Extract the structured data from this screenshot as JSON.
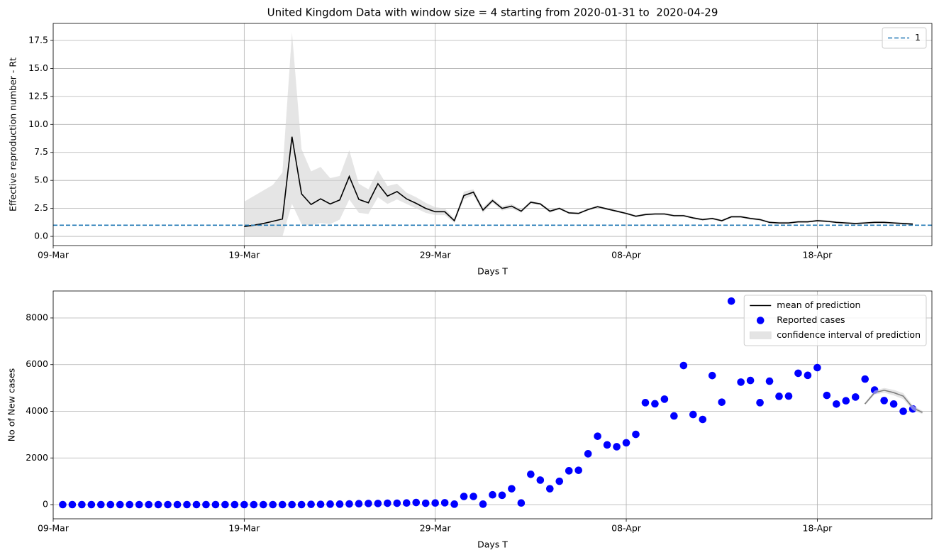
{
  "chart_data": [
    {
      "type": "line",
      "title": "United Kingdom Data with window size = 4 starting from 2020-01-31 to  2020-04-29",
      "xlabel": "Days T",
      "ylabel": "Effective reproduction number - Rt",
      "xlim": [
        0,
        92
      ],
      "xticks": [
        {
          "value": 0,
          "label": "09-Mar"
        },
        {
          "value": 20,
          "label": "19-Mar"
        },
        {
          "value": 40,
          "label": "29-Mar"
        },
        {
          "value": 60,
          "label": "08-Apr"
        },
        {
          "value": 80,
          "label": "18-Apr"
        }
      ],
      "ylim": [
        -0.82,
        19.02
      ],
      "yticks": [
        {
          "value": 0,
          "label": "0.0"
        },
        2.5,
        {
          "value": 5,
          "label": "5.0"
        },
        7.5,
        {
          "value": 10,
          "label": "10.0"
        },
        12.5,
        {
          "value": 15,
          "label": "15.0"
        },
        17.5
      ],
      "grid": true,
      "legend": "upper right",
      "series": [
        {
          "type": "band",
          "color": "#d3d3d3",
          "x": [
            20,
            21,
            22,
            23,
            24,
            25,
            26,
            27,
            28,
            29,
            30,
            31,
            32,
            33,
            34,
            35,
            36,
            37,
            38,
            39,
            40,
            41,
            42,
            43,
            44,
            45,
            46,
            47,
            48,
            49,
            50,
            51,
            52,
            53,
            54,
            55,
            56,
            57,
            58,
            59,
            60,
            61,
            62,
            63,
            64,
            65,
            66,
            67,
            68,
            69,
            70,
            71,
            72,
            73,
            74,
            75,
            76,
            77,
            78,
            79,
            80,
            81,
            82,
            83,
            84,
            85,
            86,
            87,
            88,
            89,
            90
          ],
          "upper": [
            3.1,
            3.6,
            4.1,
            4.6,
            5.7,
            18.2,
            7.8,
            5.8,
            6.2,
            5.2,
            5.4,
            7.7,
            4.7,
            4.2,
            5.9,
            4.5,
            4.7,
            3.9,
            3.5,
            3.0,
            2.6,
            2.5,
            1.6,
            4.0,
            4.2,
            2.6,
            3.4,
            2.7,
            2.9,
            2.4,
            3.2,
            3.0,
            2.4,
            2.6,
            2.2,
            2.15,
            2.5,
            2.75,
            2.55,
            2.35,
            2.15,
            1.9,
            2.05,
            2.1,
            2.1,
            1.95,
            1.95,
            1.75,
            1.6,
            1.7,
            1.5,
            1.85,
            1.85,
            1.7,
            1.6,
            1.35,
            1.3,
            1.3,
            1.4,
            1.4,
            1.5,
            1.45,
            1.35,
            1.3,
            1.25,
            1.3,
            1.35,
            1.35,
            1.3,
            1.25,
            1.2
          ],
          "lower": [
            0,
            0,
            0,
            0,
            0,
            2.9,
            1.1,
            1.0,
            1.2,
            1.1,
            1.5,
            3.3,
            2.1,
            2.0,
            3.5,
            2.9,
            3.3,
            2.9,
            2.5,
            2.1,
            1.9,
            1.9,
            1.2,
            3.3,
            3.7,
            2.1,
            3.0,
            2.3,
            2.5,
            2.1,
            2.9,
            2.8,
            2.1,
            2.4,
            2.0,
            1.95,
            2.3,
            2.55,
            2.35,
            2.15,
            1.95,
            1.7,
            1.85,
            1.9,
            1.9,
            1.75,
            1.75,
            1.55,
            1.4,
            1.5,
            1.3,
            1.65,
            1.65,
            1.5,
            1.4,
            1.15,
            1.1,
            1.1,
            1.2,
            1.2,
            1.3,
            1.25,
            1.15,
            1.1,
            1.05,
            1.1,
            1.15,
            1.15,
            1.1,
            1.05,
            1.0
          ]
        },
        {
          "type": "line",
          "color": "#000000",
          "x": [
            20,
            21,
            22,
            23,
            24,
            25,
            26,
            27,
            28,
            29,
            30,
            31,
            32,
            33,
            34,
            35,
            36,
            37,
            38,
            39,
            40,
            41,
            42,
            43,
            44,
            45,
            46,
            47,
            48,
            49,
            50,
            51,
            52,
            53,
            54,
            55,
            56,
            57,
            58,
            59,
            60,
            61,
            62,
            63,
            64,
            65,
            66,
            67,
            68,
            69,
            70,
            71,
            72,
            73,
            74,
            75,
            76,
            77,
            78,
            79,
            80,
            81,
            82,
            83,
            84,
            85,
            86,
            87,
            88,
            89,
            90
          ],
          "values": [
            0.88,
            1.0,
            1.15,
            1.35,
            1.55,
            8.9,
            3.8,
            2.85,
            3.35,
            2.9,
            3.25,
            5.35,
            3.3,
            3.0,
            4.7,
            3.6,
            4.0,
            3.35,
            2.95,
            2.5,
            2.2,
            2.2,
            1.4,
            3.65,
            3.95,
            2.35,
            3.2,
            2.5,
            2.7,
            2.25,
            3.05,
            2.9,
            2.25,
            2.5,
            2.1,
            2.05,
            2.4,
            2.65,
            2.45,
            2.25,
            2.05,
            1.8,
            1.95,
            2.0,
            2.0,
            1.85,
            1.85,
            1.65,
            1.5,
            1.6,
            1.4,
            1.75,
            1.75,
            1.6,
            1.5,
            1.25,
            1.2,
            1.2,
            1.3,
            1.3,
            1.4,
            1.35,
            1.25,
            1.2,
            1.15,
            1.2,
            1.25,
            1.25,
            1.2,
            1.15,
            1.1
          ]
        },
        {
          "type": "hline",
          "name": "1",
          "color": "#1f77b4",
          "value": 1
        }
      ]
    },
    {
      "type": "line",
      "xlabel": "Days T",
      "ylabel": "No of New cases",
      "xlim": [
        0,
        92
      ],
      "xticks": [
        {
          "value": 0,
          "label": "09-Mar"
        },
        {
          "value": 20,
          "label": "19-Mar"
        },
        {
          "value": 40,
          "label": "29-Mar"
        },
        {
          "value": 60,
          "label": "08-Apr"
        },
        {
          "value": 80,
          "label": "18-Apr"
        }
      ],
      "ylim": [
        -608,
        9155
      ],
      "yticks": [
        0,
        2000,
        4000,
        6000,
        8000
      ],
      "grid": true,
      "legend": "upper right",
      "series": [
        {
          "type": "line",
          "name": "mean of prediction",
          "color": "#000000",
          "x": [
            85,
            86,
            87,
            88,
            89,
            90,
            91
          ],
          "values": [
            4320,
            4800,
            4900,
            4800,
            4650,
            4150,
            3950
          ]
        },
        {
          "type": "scatter",
          "name": "Reported cases",
          "color": "#0000ff",
          "x": [
            1,
            2,
            3,
            4,
            5,
            6,
            7,
            8,
            9,
            10,
            11,
            12,
            13,
            14,
            15,
            16,
            17,
            18,
            19,
            20,
            21,
            22,
            23,
            24,
            25,
            26,
            27,
            28,
            29,
            30,
            31,
            32,
            33,
            34,
            35,
            36,
            37,
            38,
            39,
            40,
            41,
            42,
            43,
            44,
            45,
            46,
            47,
            48,
            49,
            50,
            51,
            52,
            53,
            54,
            55,
            56,
            57,
            58,
            59,
            60,
            61,
            62,
            63,
            64,
            65,
            66,
            67,
            68,
            69,
            70,
            71,
            72,
            73,
            74,
            75,
            76,
            77,
            78,
            79,
            80,
            81,
            82,
            83,
            84,
            85,
            86,
            87,
            88,
            89,
            90
          ],
          "values": [
            0,
            0,
            0,
            0,
            0,
            0,
            0,
            0,
            0,
            0,
            0,
            0,
            0,
            0,
            0,
            0,
            0,
            0,
            0,
            0,
            0,
            0,
            0,
            0,
            0,
            0,
            10,
            10,
            20,
            20,
            30,
            40,
            50,
            50,
            60,
            60,
            70,
            90,
            60,
            70,
            80,
            20,
            350,
            350,
            20,
            420,
            400,
            680,
            70,
            1300,
            1050,
            680,
            1000,
            1450,
            1470,
            2180,
            2930,
            2560,
            2480,
            2650,
            3010,
            4370,
            4320,
            4520,
            3800,
            5960,
            3860,
            3650,
            5530,
            4390,
            8720,
            5250,
            5320,
            4370,
            5290,
            4640,
            4650,
            5630,
            5540,
            5870,
            4680,
            4310,
            4450,
            4610,
            5380,
            4910,
            4460,
            4310,
            4000,
            4100
          ]
        },
        {
          "type": "band",
          "name": "confidence interval of prediction",
          "color": "#d3d3d3",
          "x": [
            85,
            86,
            87,
            88,
            89,
            90,
            91
          ],
          "upper": [
            4380,
            4880,
            5000,
            4920,
            4780,
            4250,
            4020
          ],
          "lower": [
            4260,
            4720,
            4800,
            4680,
            4520,
            4050,
            3880
          ]
        }
      ]
    }
  ]
}
